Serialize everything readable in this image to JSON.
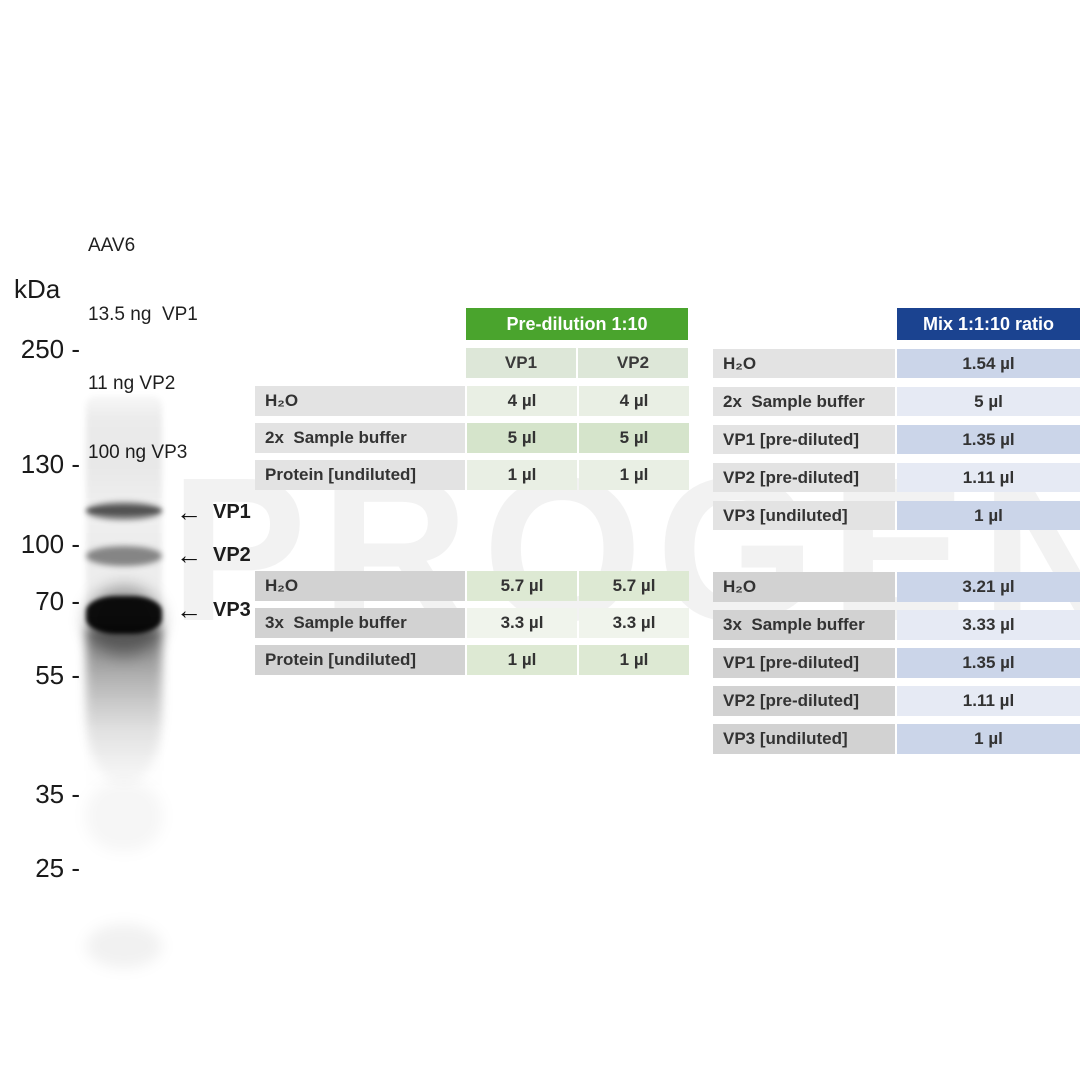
{
  "watermark": "PROGEN",
  "colors": {
    "green_header": "#4aa42d",
    "blue_header": "#1b4390",
    "green_cell_light": "#e9efe4",
    "green_cell_dark": "#d5e4cb",
    "blue_cell_light": "#e6eaf4",
    "blue_cell_dark": "#cbd5e9",
    "label_cell_top": "#e3e3e3",
    "label_cell_bottom": "#d2d2d2"
  },
  "gel": {
    "kda_label": "kDa",
    "markers": [
      "250 -",
      "130 -",
      "100 -",
      "70 -",
      "55 -",
      "35 -",
      "25 -"
    ],
    "lane_caption": [
      "AAV6",
      "13.5 ng  VP1",
      "11 ng VP2",
      "100 ng VP3"
    ],
    "arrow_icon": "←",
    "bands": [
      {
        "label": "VP1"
      },
      {
        "label": "VP2"
      },
      {
        "label": "VP3"
      }
    ]
  },
  "pre_dilution": {
    "header": "Pre-dilution 1:10",
    "columns": [
      "VP1",
      "VP2"
    ],
    "table_2x": {
      "rows": [
        {
          "label": "H₂O",
          "vp1": "4 µl",
          "vp2": "4 µl"
        },
        {
          "label": "2x  Sample buffer",
          "vp1": "5 µl",
          "vp2": "5 µl"
        },
        {
          "label": "Protein [undiluted]",
          "vp1": "1 µl",
          "vp2": "1 µl"
        }
      ]
    },
    "table_3x": {
      "rows": [
        {
          "label": "H₂O",
          "vp1": "5.7 µl",
          "vp2": "5.7 µl"
        },
        {
          "label": "3x  Sample buffer",
          "vp1": "3.3 µl",
          "vp2": "3.3 µl"
        },
        {
          "label": "Protein [undiluted]",
          "vp1": "1 µl",
          "vp2": "1 µl"
        }
      ]
    }
  },
  "mix": {
    "header": "Mix 1:1:10 ratio",
    "table_2x": {
      "rows": [
        {
          "label": "H₂O",
          "value": "1.54 µl"
        },
        {
          "label": "2x  Sample buffer",
          "value": "5 µl"
        },
        {
          "label": "VP1 [pre-diluted]",
          "value": "1.35 µl"
        },
        {
          "label": "VP2 [pre-diluted]",
          "value": "1.11 µl"
        },
        {
          "label": "VP3 [undiluted]",
          "value": "1 µl"
        }
      ]
    },
    "table_3x": {
      "rows": [
        {
          "label": "H₂O",
          "value": "3.21 µl"
        },
        {
          "label": "3x  Sample buffer",
          "value": "3.33 µl"
        },
        {
          "label": "VP1 [pre-diluted]",
          "value": "1.35 µl"
        },
        {
          "label": "VP2 [pre-diluted]",
          "value": "1.11 µl"
        },
        {
          "label": "VP3 [undiluted]",
          "value": "1 µl"
        }
      ]
    }
  }
}
